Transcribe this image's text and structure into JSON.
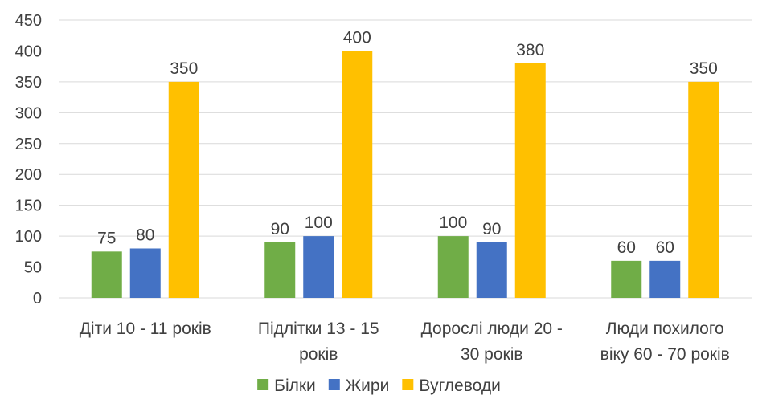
{
  "chart_data": {
    "type": "bar",
    "title": "",
    "xlabel": "",
    "ylabel": "",
    "ylim": [
      0,
      450
    ],
    "yticks": [
      0,
      50,
      100,
      150,
      200,
      250,
      300,
      350,
      400,
      450
    ],
    "grid": true,
    "legend_position": "bottom",
    "categories": [
      [
        "Діти 10 - 11 років"
      ],
      [
        "Підлітки 13 - 15",
        "років"
      ],
      [
        "Дорослі люди 20 -",
        "30 років"
      ],
      [
        "Люди похилого",
        "віку 60 - 70 років"
      ]
    ],
    "series": [
      {
        "name": "Білки",
        "color": "#70ad47",
        "values": [
          75,
          90,
          100,
          60
        ]
      },
      {
        "name": "Жири",
        "color": "#4472c4",
        "values": [
          80,
          100,
          90,
          60
        ]
      },
      {
        "name": "Вуглеводи",
        "color": "#ffc000",
        "values": [
          350,
          400,
          380,
          350
        ]
      }
    ]
  }
}
